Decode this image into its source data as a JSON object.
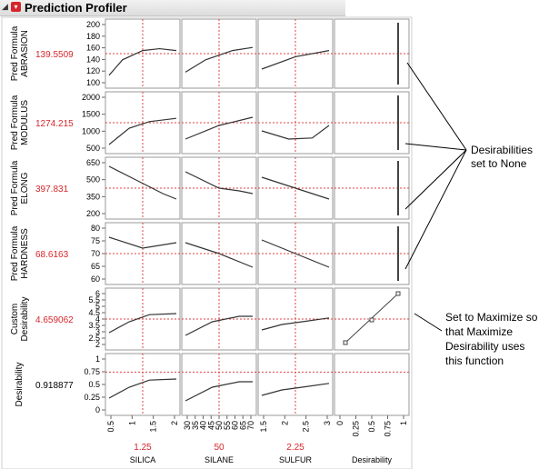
{
  "window": {
    "title": "Prediction Profiler"
  },
  "header": {
    "collapse_icon": "disclosure-triangle-icon",
    "menu_icon": "red-triangle-menu-icon"
  },
  "colors": {
    "current_value": "#d7262b",
    "crosshair": "#e04040",
    "curve": "#333333",
    "frame": "#999999"
  },
  "rows": [
    {
      "label": "Pred Formula ABRASION",
      "value": "139.5509",
      "ticks": [
        "200",
        "180",
        "160",
        "140",
        "120",
        "100"
      ]
    },
    {
      "label": "Pred Formula MODULUS",
      "value": "1274.215",
      "ticks": [
        "2000",
        "1500",
        "1000",
        "500"
      ]
    },
    {
      "label": "Pred Formula ELONG",
      "value": "397.831",
      "ticks": [
        "650",
        "500",
        "350",
        "200"
      ]
    },
    {
      "label": "Pred Formula HARDNESS",
      "value": "68.6163",
      "ticks": [
        "80",
        "75",
        "70",
        "65",
        "60"
      ]
    },
    {
      "label": "Custom Desirability",
      "value": "4.659062",
      "ticks": [
        "6",
        "5.5",
        "5",
        "4.5",
        "4",
        "3.5",
        "3",
        "2.5",
        "2"
      ]
    },
    {
      "label": "Desirability",
      "value": "0.918877",
      "ticks": [
        "1",
        "0.75",
        "0.5",
        "0.25",
        "0"
      ]
    }
  ],
  "columns": [
    {
      "name": "SILICA",
      "value": "1.25",
      "ticks": [
        "0.5",
        "1",
        "1.5",
        "2"
      ]
    },
    {
      "name": "SILANE",
      "value": "50",
      "ticks": [
        "30",
        "35",
        "40",
        "45",
        "50",
        "55",
        "60",
        "65",
        "70"
      ]
    },
    {
      "name": "SULFUR",
      "value": "2.25",
      "ticks": [
        "1.5",
        "2",
        "2.5",
        "3"
      ]
    },
    {
      "name": "Desirability",
      "value": "",
      "ticks": [
        "0",
        "0.25",
        "0.5",
        "0.75",
        "1"
      ]
    }
  ],
  "annotations": {
    "none": {
      "line1": "Desirabilities",
      "line2": "set to None"
    },
    "maximize": {
      "line1": "Set to Maximize so",
      "line2": "that Maximize",
      "line3": "Desirability uses",
      "line4": "this function"
    }
  }
}
